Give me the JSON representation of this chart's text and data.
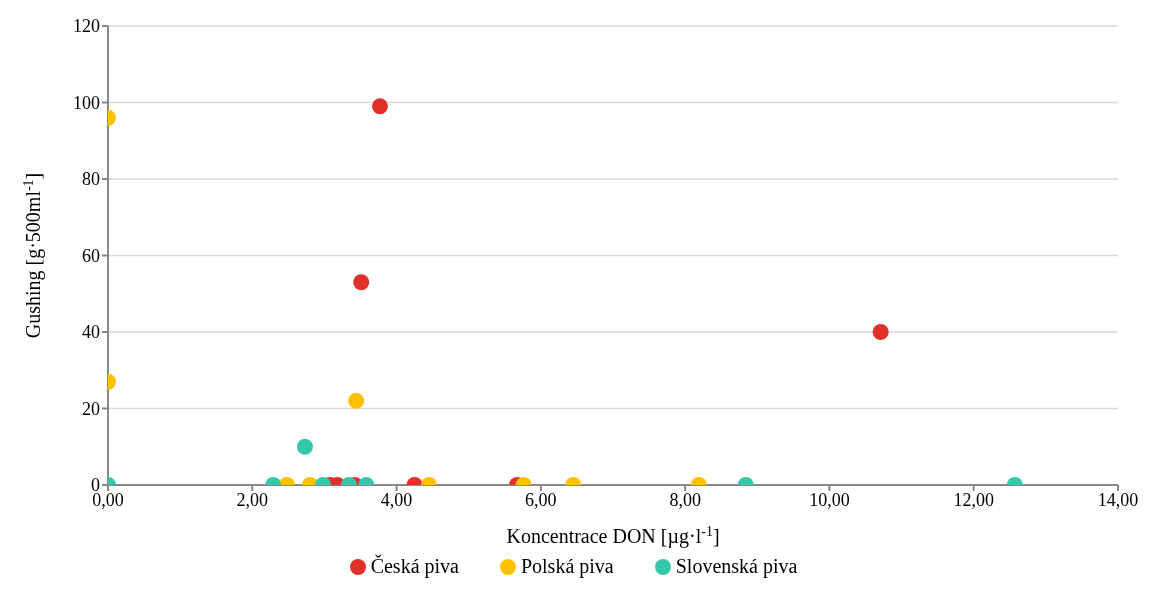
{
  "chart_data": {
    "type": "scatter",
    "xlabel": "Koncentrace DON [µg·l$^{-1}$]",
    "ylabel": "Gushing [g·500ml$^{-1}$]",
    "xlim": [
      0,
      14
    ],
    "xticks": [
      {
        "value": 0,
        "label": "0,00"
      },
      {
        "value": 2,
        "label": "2,00"
      },
      {
        "value": 4,
        "label": "4,00"
      },
      {
        "value": 6,
        "label": "6,00"
      },
      {
        "value": 8,
        "label": "8,00"
      },
      {
        "value": 10,
        "label": "10,00"
      },
      {
        "value": 12,
        "label": "12,00"
      },
      {
        "value": 14,
        "label": "14,00"
      }
    ],
    "ylim": [
      0,
      120
    ],
    "yticks": [
      0,
      20,
      40,
      60,
      80,
      100,
      120
    ],
    "grid": "y",
    "legend": "bottom",
    "marker": "circle",
    "series": [
      {
        "name": "Česká piva",
        "color": "#e0302a",
        "x": [
          3.77,
          3.51,
          10.71,
          4.25,
          5.67,
          3.08,
          3.18,
          3.42
        ],
        "values": [
          99,
          53,
          40,
          0,
          0,
          0,
          0,
          0
        ]
      },
      {
        "name": "Polská piva",
        "color": "#ffc000",
        "x": [
          0,
          0,
          3.44,
          2.48,
          2.8,
          4.45,
          5.76,
          6.45,
          8.19
        ],
        "values": [
          96,
          27,
          22,
          0,
          0,
          0,
          0,
          0,
          0
        ]
      },
      {
        "name": "Slovenská piva",
        "color": "#35c8a8",
        "x": [
          2.73,
          0,
          2.29,
          2.98,
          3.34,
          3.58,
          8.84,
          12.57
        ],
        "values": [
          10,
          0,
          0,
          0,
          0,
          0,
          0,
          0
        ]
      }
    ]
  }
}
